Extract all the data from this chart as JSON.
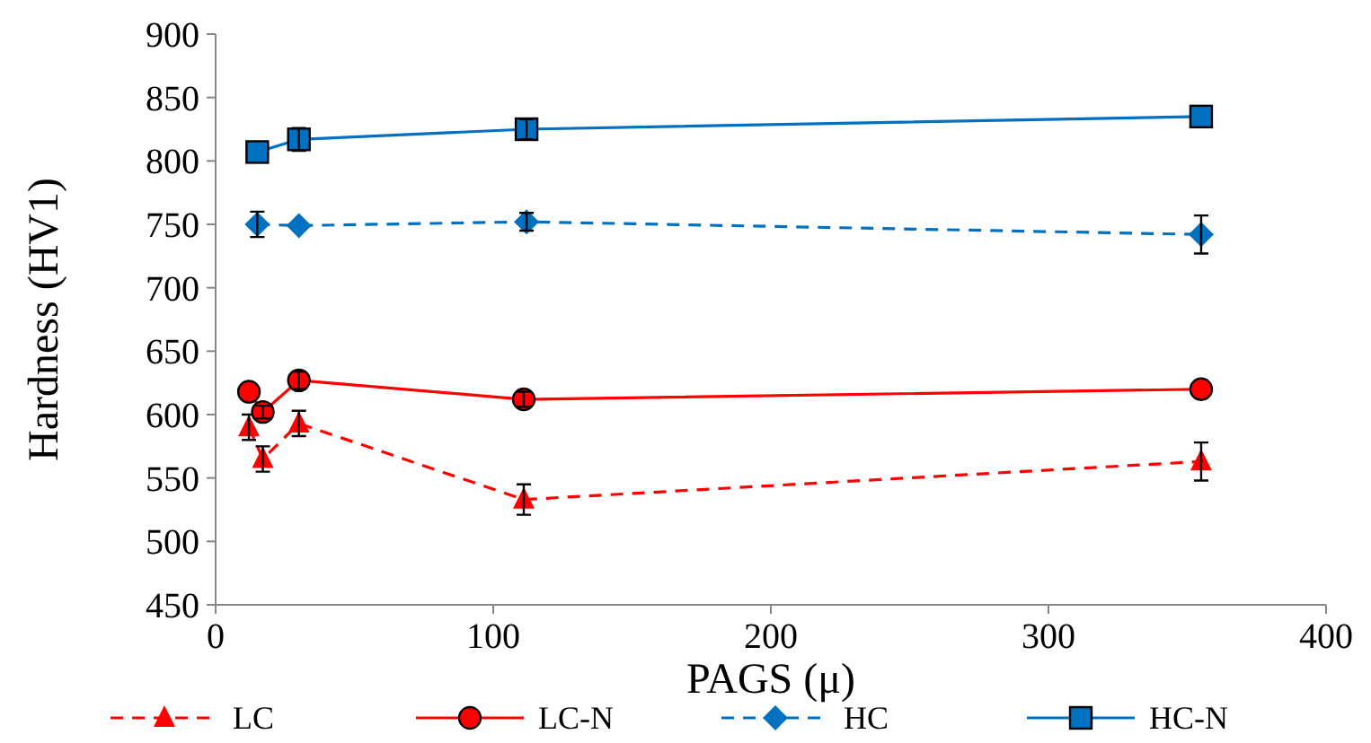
{
  "chart_data": {
    "type": "line",
    "xlabel": "PAGS (μ)",
    "ylabel": "Hardness (HV1)",
    "xlim": [
      0,
      400
    ],
    "xticks": [
      0,
      100,
      200,
      300,
      400
    ],
    "ylim": [
      450,
      900
    ],
    "yticks": [
      450,
      500,
      550,
      600,
      650,
      700,
      750,
      800,
      850,
      900
    ],
    "grid": false,
    "legend": "bottom",
    "series": [
      {
        "name": "LC",
        "color": "#ff0000",
        "marker": "triangle",
        "line_style": "dashed",
        "x": [
          12,
          17,
          30,
          111,
          355
        ],
        "values": [
          590,
          565,
          593,
          533,
          563
        ],
        "errors": [
          10,
          10,
          10,
          12,
          15
        ]
      },
      {
        "name": "LC-N",
        "color": "#ff0000",
        "marker": "circle",
        "line_style": "solid",
        "x": [
          12,
          17,
          30,
          111,
          355
        ],
        "values": [
          618,
          602,
          627,
          612,
          620
        ],
        "errors": [
          null,
          5,
          7,
          6,
          null
        ]
      },
      {
        "name": "HC",
        "color": "#0070c0",
        "marker": "diamond",
        "line_style": "dashed",
        "x": [
          15,
          30,
          112,
          355
        ],
        "values": [
          750,
          749,
          752,
          742
        ],
        "errors": [
          10,
          null,
          7,
          15
        ]
      },
      {
        "name": "HC-N",
        "color": "#0070c0",
        "marker": "square",
        "line_style": "solid",
        "x": [
          15,
          30,
          112,
          355
        ],
        "values": [
          807,
          817,
          825,
          835
        ],
        "errors": [
          null,
          9,
          8,
          null
        ]
      }
    ]
  }
}
